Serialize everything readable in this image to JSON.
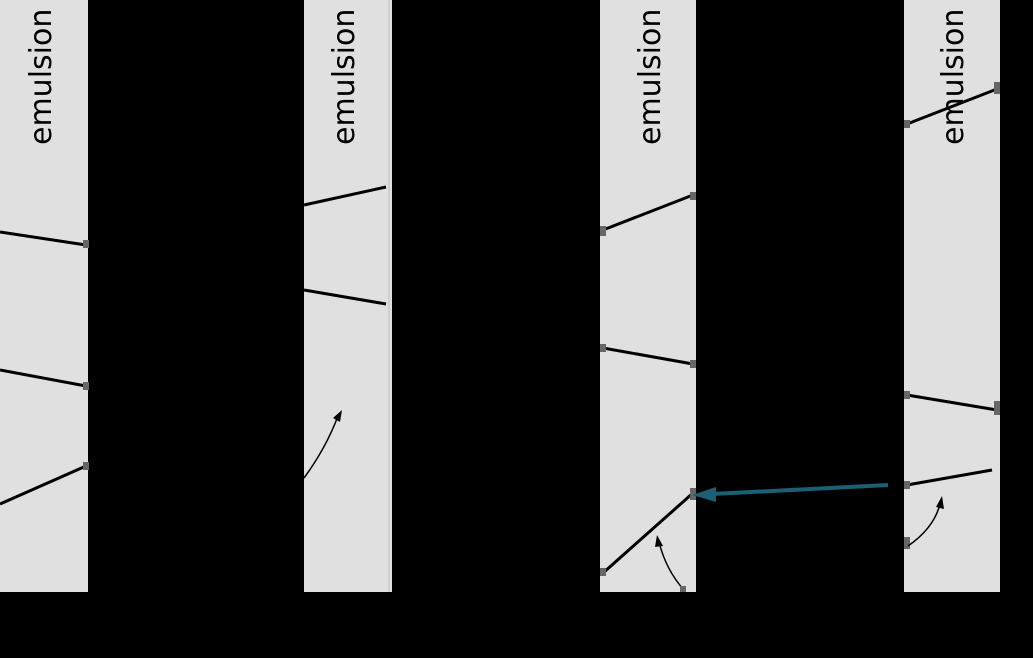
{
  "colors": {
    "background": "#000000",
    "emulsion": "#e0e0e0",
    "track": "#000000",
    "marker": "#666666",
    "highlight_arrow": "#1a5f73"
  },
  "strips": [
    {
      "label": "emulsion"
    },
    {
      "label": "emulsion"
    },
    {
      "label": "emulsion"
    },
    {
      "label": "emulsion"
    }
  ]
}
